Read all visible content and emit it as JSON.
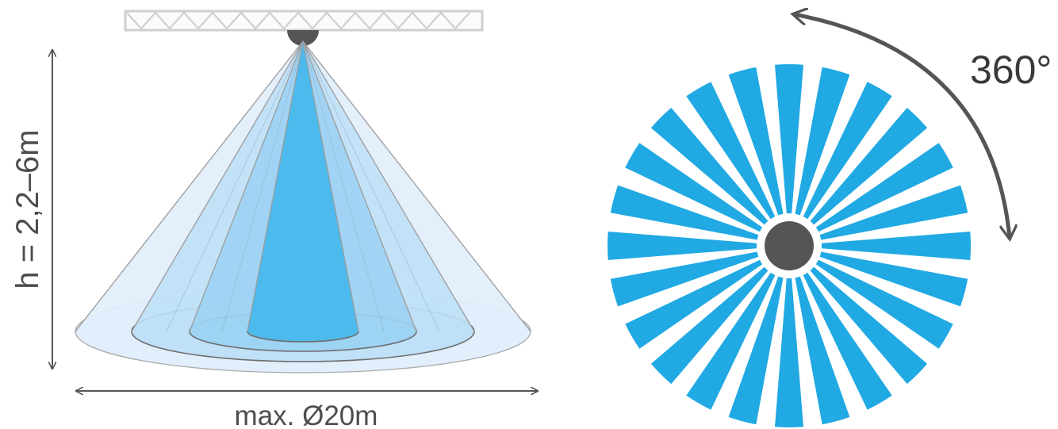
{
  "labels": {
    "height": "h = 2,2–6m",
    "diameter": "max. Ø20m",
    "rotation": "360°"
  },
  "sensor": {
    "detection_zone_count": 24,
    "cone_colors": [
      "#e1eefb",
      "#bfe0f6",
      "#9dd3f3",
      "#4cbaec"
    ],
    "zone_color": "#20a9e3",
    "sensor_color": "#555555",
    "truss_color": "#cfcfcf",
    "arrow_color": "#555555"
  }
}
